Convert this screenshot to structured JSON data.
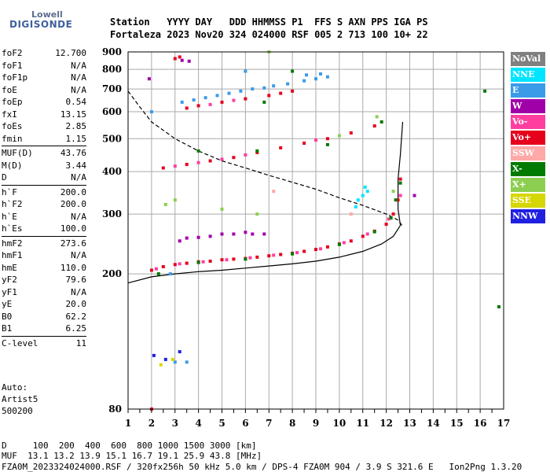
{
  "brand": {
    "line1": "Lowell",
    "line2": "DIGISONDE"
  },
  "header": {
    "line1": "Station   YYYY DAY   DDD HHMMSS P1  FFS S AXN PPS IGA PS",
    "line2": "Fortaleza 2023 Nov20 324 024000 RSF 005 2 713 100 10+ 22"
  },
  "params": [
    [
      {
        "label": "foF2",
        "value": "12.700"
      },
      {
        "label": "foF1",
        "value": "N/A"
      },
      {
        "label": "foF1p",
        "value": "N/A"
      },
      {
        "label": "foE",
        "value": "N/A"
      },
      {
        "label": "foEp",
        "value": "0.54"
      },
      {
        "label": "fxI",
        "value": "13.15"
      },
      {
        "label": "foEs",
        "value": "2.85"
      },
      {
        "label": "fmin",
        "value": "1.15"
      }
    ],
    [
      {
        "label": "MUF(D)",
        "value": "43.76"
      },
      {
        "label": "M(D)",
        "value": "3.44"
      },
      {
        "label": "D",
        "value": "N/A"
      }
    ],
    [
      {
        "label": "h`F",
        "value": "200.0"
      },
      {
        "label": "h`F2",
        "value": "200.0"
      },
      {
        "label": "h`E",
        "value": "N/A"
      },
      {
        "label": "h`Es",
        "value": "100.0"
      }
    ],
    [
      {
        "label": "hmF2",
        "value": "273.6"
      },
      {
        "label": "hmF1",
        "value": "N/A"
      },
      {
        "label": "hmE",
        "value": "110.0"
      },
      {
        "label": "yF2",
        "value": "79.6"
      },
      {
        "label": "yF1",
        "value": "N/A"
      },
      {
        "label": "yE",
        "value": "20.0"
      },
      {
        "label": "B0",
        "value": "62.2"
      },
      {
        "label": "B1",
        "value": "6.25"
      }
    ],
    [
      {
        "label": "C-level",
        "value": "11"
      }
    ]
  ],
  "auto": {
    "line1": "Auto:",
    "line2": "Artist5",
    "line3": "500200"
  },
  "legend": [
    {
      "label": "NoVal",
      "color": "#808080"
    },
    {
      "label": "NNE",
      "color": "#00e5ff"
    },
    {
      "label": "E",
      "color": "#3a9be8"
    },
    {
      "label": "W",
      "color": "#a000a8"
    },
    {
      "label": "Vo-",
      "color": "#ff3ea0"
    },
    {
      "label": "Vo+",
      "color": "#e6001c"
    },
    {
      "label": "SSW",
      "color": "#ffa8a8"
    },
    {
      "label": "X-",
      "color": "#007a00"
    },
    {
      "label": "X+",
      "color": "#8ccf50"
    },
    {
      "label": "SSE",
      "color": "#d6d600"
    },
    {
      "label": "NNW",
      "color": "#2020e0"
    }
  ],
  "footer": {
    "line1": "D     100  200  400  600  800 1000 1500 3000 [km]",
    "line2": "MUF  13.1 13.2 13.9 15.1 16.7 19.1 25.9 43.8 [MHz]",
    "line3": "FZA0M_2023324024000.RSF / 320fx256h 50 kHz 5.0 km / DPS-4 FZA0M 904 / 3.9 S 321.6 E   Ion2Png 1.3.20"
  },
  "chart_data": {
    "type": "scatter",
    "x_ticks": [
      "1",
      "2",
      "3",
      "4",
      "5",
      "6",
      "7",
      "8",
      "9",
      "10",
      "11",
      "12",
      "13",
      "14",
      "15",
      "16",
      "17"
    ],
    "y_ticks": [
      "80",
      "200",
      "300",
      "400",
      "500",
      "600",
      "700",
      "800",
      "900"
    ],
    "xlim": [
      1,
      17
    ],
    "ylim": [
      80,
      900
    ],
    "y_scale": "log",
    "grid": true,
    "series": [
      {
        "color": "#e6001c",
        "points": [
          [
            2.0,
            205
          ],
          [
            2.5,
            210
          ],
          [
            3.0,
            213
          ],
          [
            3.5,
            215
          ],
          [
            4.0,
            217
          ],
          [
            4.5,
            218
          ],
          [
            5.0,
            220
          ],
          [
            5.5,
            221
          ],
          [
            6.0,
            222
          ],
          [
            6.5,
            224
          ],
          [
            7.0,
            226
          ],
          [
            7.5,
            228
          ],
          [
            8.0,
            230
          ],
          [
            8.5,
            233
          ],
          [
            9.0,
            236
          ],
          [
            9.5,
            240
          ],
          [
            10.0,
            245
          ],
          [
            10.5,
            250
          ],
          [
            11.0,
            258
          ],
          [
            11.5,
            267
          ],
          [
            12.0,
            280
          ],
          [
            12.3,
            300
          ],
          [
            12.5,
            330
          ],
          [
            12.6,
            380
          ],
          [
            2.5,
            410
          ],
          [
            3.5,
            420
          ],
          [
            4.5,
            430
          ],
          [
            5.5,
            440
          ],
          [
            6.5,
            455
          ],
          [
            7.5,
            470
          ],
          [
            8.5,
            485
          ],
          [
            9.5,
            500
          ],
          [
            10.5,
            520
          ],
          [
            11.5,
            545
          ],
          [
            3.5,
            615
          ],
          [
            4.0,
            625
          ],
          [
            5.0,
            640
          ],
          [
            6.0,
            655
          ],
          [
            7.0,
            670
          ],
          [
            7.5,
            680
          ],
          [
            8.0,
            690
          ],
          [
            3.0,
            860
          ],
          [
            3.2,
            870
          ],
          [
            2.0,
            80
          ]
        ]
      },
      {
        "color": "#ff3ea0",
        "points": [
          [
            2.2,
            207
          ],
          [
            3.2,
            214
          ],
          [
            4.2,
            217
          ],
          [
            5.2,
            220
          ],
          [
            6.2,
            223
          ],
          [
            7.2,
            227
          ],
          [
            8.2,
            231
          ],
          [
            9.2,
            237
          ],
          [
            10.2,
            247
          ],
          [
            11.2,
            262
          ],
          [
            12.1,
            290
          ],
          [
            12.6,
            340
          ],
          [
            3.0,
            415
          ],
          [
            4.0,
            425
          ],
          [
            5.0,
            435
          ],
          [
            6.0,
            448
          ],
          [
            9.0,
            495
          ],
          [
            4.5,
            630
          ],
          [
            5.5,
            648
          ]
        ]
      },
      {
        "color": "#3a9be8",
        "points": [
          [
            3.3,
            640
          ],
          [
            3.8,
            650
          ],
          [
            4.3,
            660
          ],
          [
            4.8,
            670
          ],
          [
            5.3,
            680
          ],
          [
            5.8,
            690
          ],
          [
            6.3,
            700
          ],
          [
            6.8,
            705
          ],
          [
            7.2,
            715
          ],
          [
            7.8,
            725
          ],
          [
            8.5,
            740
          ],
          [
            9.0,
            750
          ],
          [
            9.5,
            760
          ],
          [
            8.6,
            770
          ],
          [
            9.2,
            775
          ],
          [
            6.0,
            790
          ],
          [
            2.8,
            200
          ],
          [
            3.0,
            110
          ],
          [
            3.5,
            110
          ],
          [
            2.0,
            600
          ]
        ]
      },
      {
        "color": "#00e5ff",
        "points": [
          [
            10.8,
            330
          ],
          [
            11.0,
            340
          ],
          [
            11.2,
            350
          ],
          [
            10.7,
            315
          ],
          [
            11.1,
            360
          ]
        ]
      },
      {
        "color": "#a000a8",
        "points": [
          [
            3.2,
            250
          ],
          [
            3.5,
            255
          ],
          [
            4.0,
            256
          ],
          [
            4.5,
            258
          ],
          [
            5.0,
            262
          ],
          [
            5.5,
            262
          ],
          [
            6.0,
            265
          ],
          [
            6.3,
            262
          ],
          [
            6.8,
            262
          ],
          [
            3.3,
            850
          ],
          [
            3.6,
            845
          ],
          [
            1.9,
            750
          ],
          [
            13.2,
            340
          ]
        ]
      },
      {
        "color": "#007a00",
        "points": [
          [
            2.3,
            200
          ],
          [
            4.0,
            216
          ],
          [
            6.0,
            221
          ],
          [
            8.0,
            229
          ],
          [
            10.0,
            244
          ],
          [
            11.5,
            266
          ],
          [
            12.2,
            292
          ],
          [
            12.6,
            370
          ],
          [
            4.0,
            460
          ],
          [
            6.5,
            460
          ],
          [
            9.5,
            480
          ],
          [
            11.8,
            560
          ],
          [
            8.0,
            790
          ],
          [
            16.2,
            690
          ],
          [
            16.8,
            160
          ],
          [
            6.8,
            640
          ],
          [
            12.4,
            330
          ]
        ]
      },
      {
        "color": "#8ccf50",
        "points": [
          [
            2.6,
            320
          ],
          [
            3.0,
            330
          ],
          [
            5.0,
            310
          ],
          [
            6.5,
            300
          ],
          [
            11.6,
            580
          ],
          [
            7.0,
            900
          ],
          [
            12.3,
            350
          ],
          [
            10.0,
            510
          ]
        ]
      },
      {
        "color": "#2020e0",
        "points": [
          [
            2.1,
            115
          ],
          [
            2.6,
            112
          ],
          [
            3.2,
            118
          ]
        ]
      },
      {
        "color": "#d6d600",
        "points": [
          [
            2.4,
            108
          ],
          [
            2.9,
            112
          ]
        ]
      },
      {
        "color": "#ffa8a8",
        "points": [
          [
            7.2,
            350
          ],
          [
            10.5,
            300
          ]
        ]
      }
    ],
    "curves": [
      {
        "style": "solid",
        "points": [
          [
            1,
            188
          ],
          [
            2,
            196
          ],
          [
            3,
            200
          ],
          [
            4,
            203
          ],
          [
            5,
            205
          ],
          [
            6,
            208
          ],
          [
            7,
            211
          ],
          [
            8,
            214
          ],
          [
            9,
            218
          ],
          [
            10,
            224
          ],
          [
            11,
            233
          ],
          [
            11.8,
            245
          ],
          [
            12.3,
            258
          ],
          [
            12.6,
            278
          ],
          [
            12.5,
            310
          ],
          [
            12.5,
            380
          ],
          [
            12.6,
            450
          ],
          [
            12.7,
            560
          ]
        ]
      },
      {
        "style": "dashed",
        "points": [
          [
            1,
            690
          ],
          [
            1.5,
            620
          ],
          [
            2,
            560
          ],
          [
            3,
            500
          ],
          [
            4,
            460
          ],
          [
            5,
            430
          ],
          [
            6,
            410
          ],
          [
            7,
            390
          ],
          [
            8,
            372
          ],
          [
            9,
            355
          ],
          [
            10,
            335
          ],
          [
            11,
            318
          ],
          [
            12,
            300
          ],
          [
            12.5,
            288
          ],
          [
            12.7,
            276
          ]
        ]
      }
    ]
  }
}
